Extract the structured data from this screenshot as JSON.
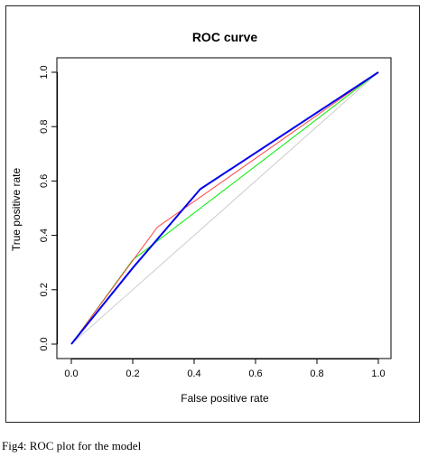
{
  "caption": "Fig4: ROC plot for the model",
  "chart_data": {
    "type": "line",
    "title": "ROC curve",
    "xlabel": "False positive rate",
    "ylabel": "True positive rate",
    "xlim": [
      0,
      1
    ],
    "ylim": [
      0,
      1
    ],
    "xticks": [
      "0.0",
      "0.2",
      "0.4",
      "0.6",
      "0.8",
      "1.0"
    ],
    "yticks": [
      "0.0",
      "0.2",
      "0.4",
      "0.6",
      "0.8",
      "1.0"
    ],
    "grid": false,
    "series": [
      {
        "color": "#cccccc",
        "x": [
          0,
          1
        ],
        "y": [
          0,
          1
        ],
        "width": 1
      },
      {
        "color": "#00ee00",
        "x": [
          0,
          0.2,
          1
        ],
        "y": [
          0,
          0.31,
          1
        ],
        "width": 1
      },
      {
        "color": "#ff4444",
        "x": [
          0,
          0.28,
          1
        ],
        "y": [
          0,
          0.43,
          1
        ],
        "width": 1
      },
      {
        "color": "#0000ee",
        "x": [
          0,
          0.2,
          0.42,
          1
        ],
        "y": [
          0,
          0.28,
          0.57,
          1
        ],
        "width": 2
      }
    ]
  }
}
